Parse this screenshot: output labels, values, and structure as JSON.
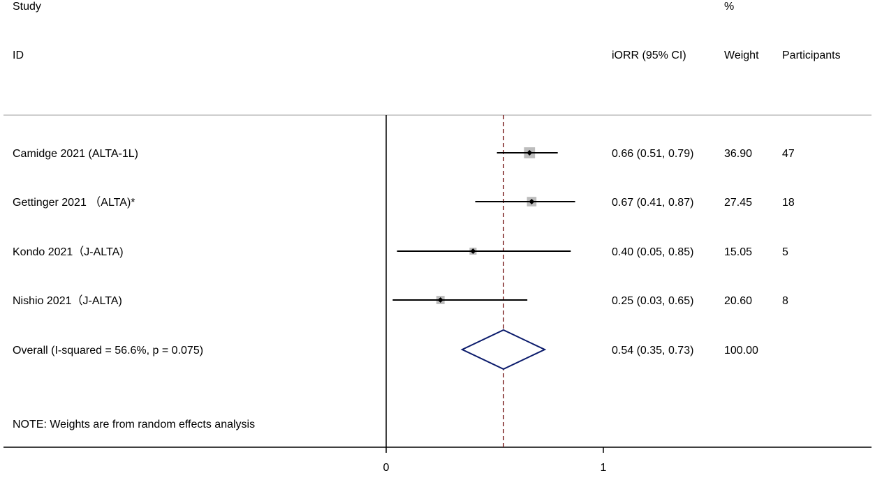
{
  "header": {
    "study_line1": "Study",
    "study_line2": "ID",
    "estimate_label": "iORR (95% CI)",
    "weight_line1": "%",
    "weight_line2": "Weight",
    "participants_label": "Participants"
  },
  "note": "NOTE: Weights are from random effects analysis",
  "colors": {
    "marker_box": "#bdbdbd",
    "ci_line": "#000000",
    "overall_diamond": "#0a1a6b",
    "overall_line": "#7a1f1f",
    "axis": "#000000",
    "header_rule": "#bdbdbd"
  },
  "chart_data": {
    "type": "forest",
    "title": "",
    "xlim": [
      0,
      1.2
    ],
    "xticks": [
      0,
      1
    ],
    "xtick_labels": [
      "0",
      "1"
    ],
    "null_line": 0,
    "studies": [
      {
        "id": "Camidge 2021 (ALTA-1L)",
        "estimate": 0.66,
        "ci_low": 0.51,
        "ci_high": 0.79,
        "label": "0.66 (0.51, 0.79)",
        "weight": 36.9,
        "weight_label": "36.90",
        "participants": "47"
      },
      {
        "id": "Gettinger 2021 （ALTA)*",
        "estimate": 0.67,
        "ci_low": 0.41,
        "ci_high": 0.87,
        "label": "0.67 (0.41, 0.87)",
        "weight": 27.45,
        "weight_label": "27.45",
        "participants": "18"
      },
      {
        "id": "Kondo 2021（J-ALTA)",
        "estimate": 0.4,
        "ci_low": 0.05,
        "ci_high": 0.85,
        "label": "0.40 (0.05, 0.85)",
        "weight": 15.05,
        "weight_label": "15.05",
        "participants": "5"
      },
      {
        "id": "Nishio 2021（J-ALTA)",
        "estimate": 0.25,
        "ci_low": 0.03,
        "ci_high": 0.65,
        "label": "0.25 (0.03, 0.65)",
        "weight": 20.6,
        "weight_label": "20.60",
        "participants": "8"
      }
    ],
    "overall": {
      "id": "Overall  (I-squared = 56.6%, p = 0.075)",
      "estimate": 0.54,
      "ci_low": 0.35,
      "ci_high": 0.73,
      "label": "0.54 (0.35, 0.73)",
      "weight_label": "100.00"
    }
  }
}
